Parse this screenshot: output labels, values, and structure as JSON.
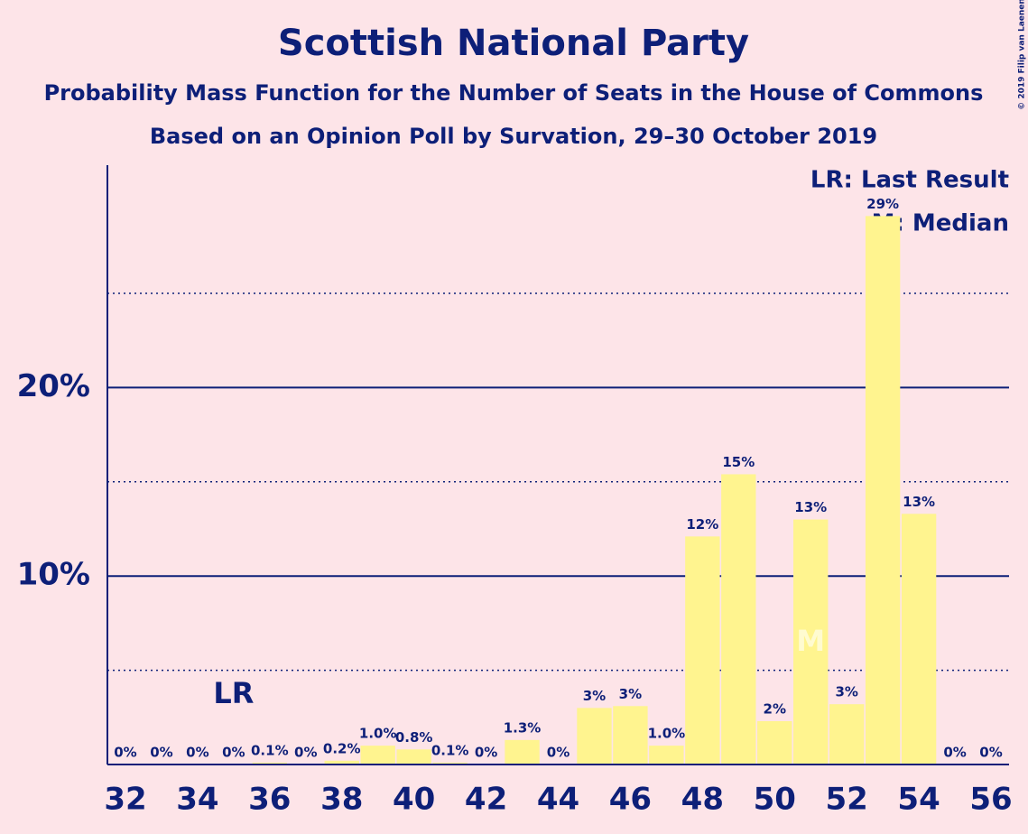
{
  "chart_data": {
    "type": "bar",
    "title": "Scottish National Party",
    "subtitle": "Probability Mass Function for the Number of Seats in the House of Commons",
    "subtitle2": "Based on an Opinion Poll by Survation, 29–30 October 2019",
    "copyright": "© 2019 Filip van Laenen",
    "x": [
      32,
      33,
      34,
      35,
      36,
      37,
      38,
      39,
      40,
      41,
      42,
      43,
      44,
      45,
      46,
      47,
      48,
      49,
      50,
      51,
      52,
      53,
      54,
      55,
      56
    ],
    "values": [
      0,
      0,
      0,
      0,
      0.1,
      0,
      0.2,
      1.0,
      0.8,
      0.1,
      0,
      1.3,
      0,
      3.0,
      3.1,
      1.0,
      12.1,
      15.4,
      2.3,
      13.0,
      3.2,
      29.1,
      13.3,
      0,
      0
    ],
    "value_labels": [
      "0%",
      "0%",
      "0%",
      "0%",
      "0.1%",
      "0%",
      "0.2%",
      "1.0%",
      "0.8%",
      "0.1%",
      "0%",
      "1.3%",
      "0%",
      "3%",
      "3%",
      "1.0%",
      "12%",
      "15%",
      "2%",
      "13%",
      "3%",
      "29%",
      "13%",
      "0%",
      "0%"
    ],
    "color": "#fff48f",
    "xlim": [
      31.5,
      56.5
    ],
    "xticks": [
      32,
      34,
      36,
      38,
      40,
      42,
      44,
      46,
      48,
      50,
      52,
      54,
      56
    ],
    "ylim": [
      0,
      31.8
    ],
    "yticks": [
      {
        "value": 10,
        "label": "10%"
      },
      {
        "value": 20,
        "label": "20%"
      }
    ],
    "minor_gridlines": [
      5,
      15,
      25
    ],
    "annotations": [
      {
        "text": "LR",
        "x": 35
      },
      {
        "text": "M",
        "x": 51
      }
    ],
    "legend": [
      "LR: Last Result",
      "M: Median"
    ]
  }
}
